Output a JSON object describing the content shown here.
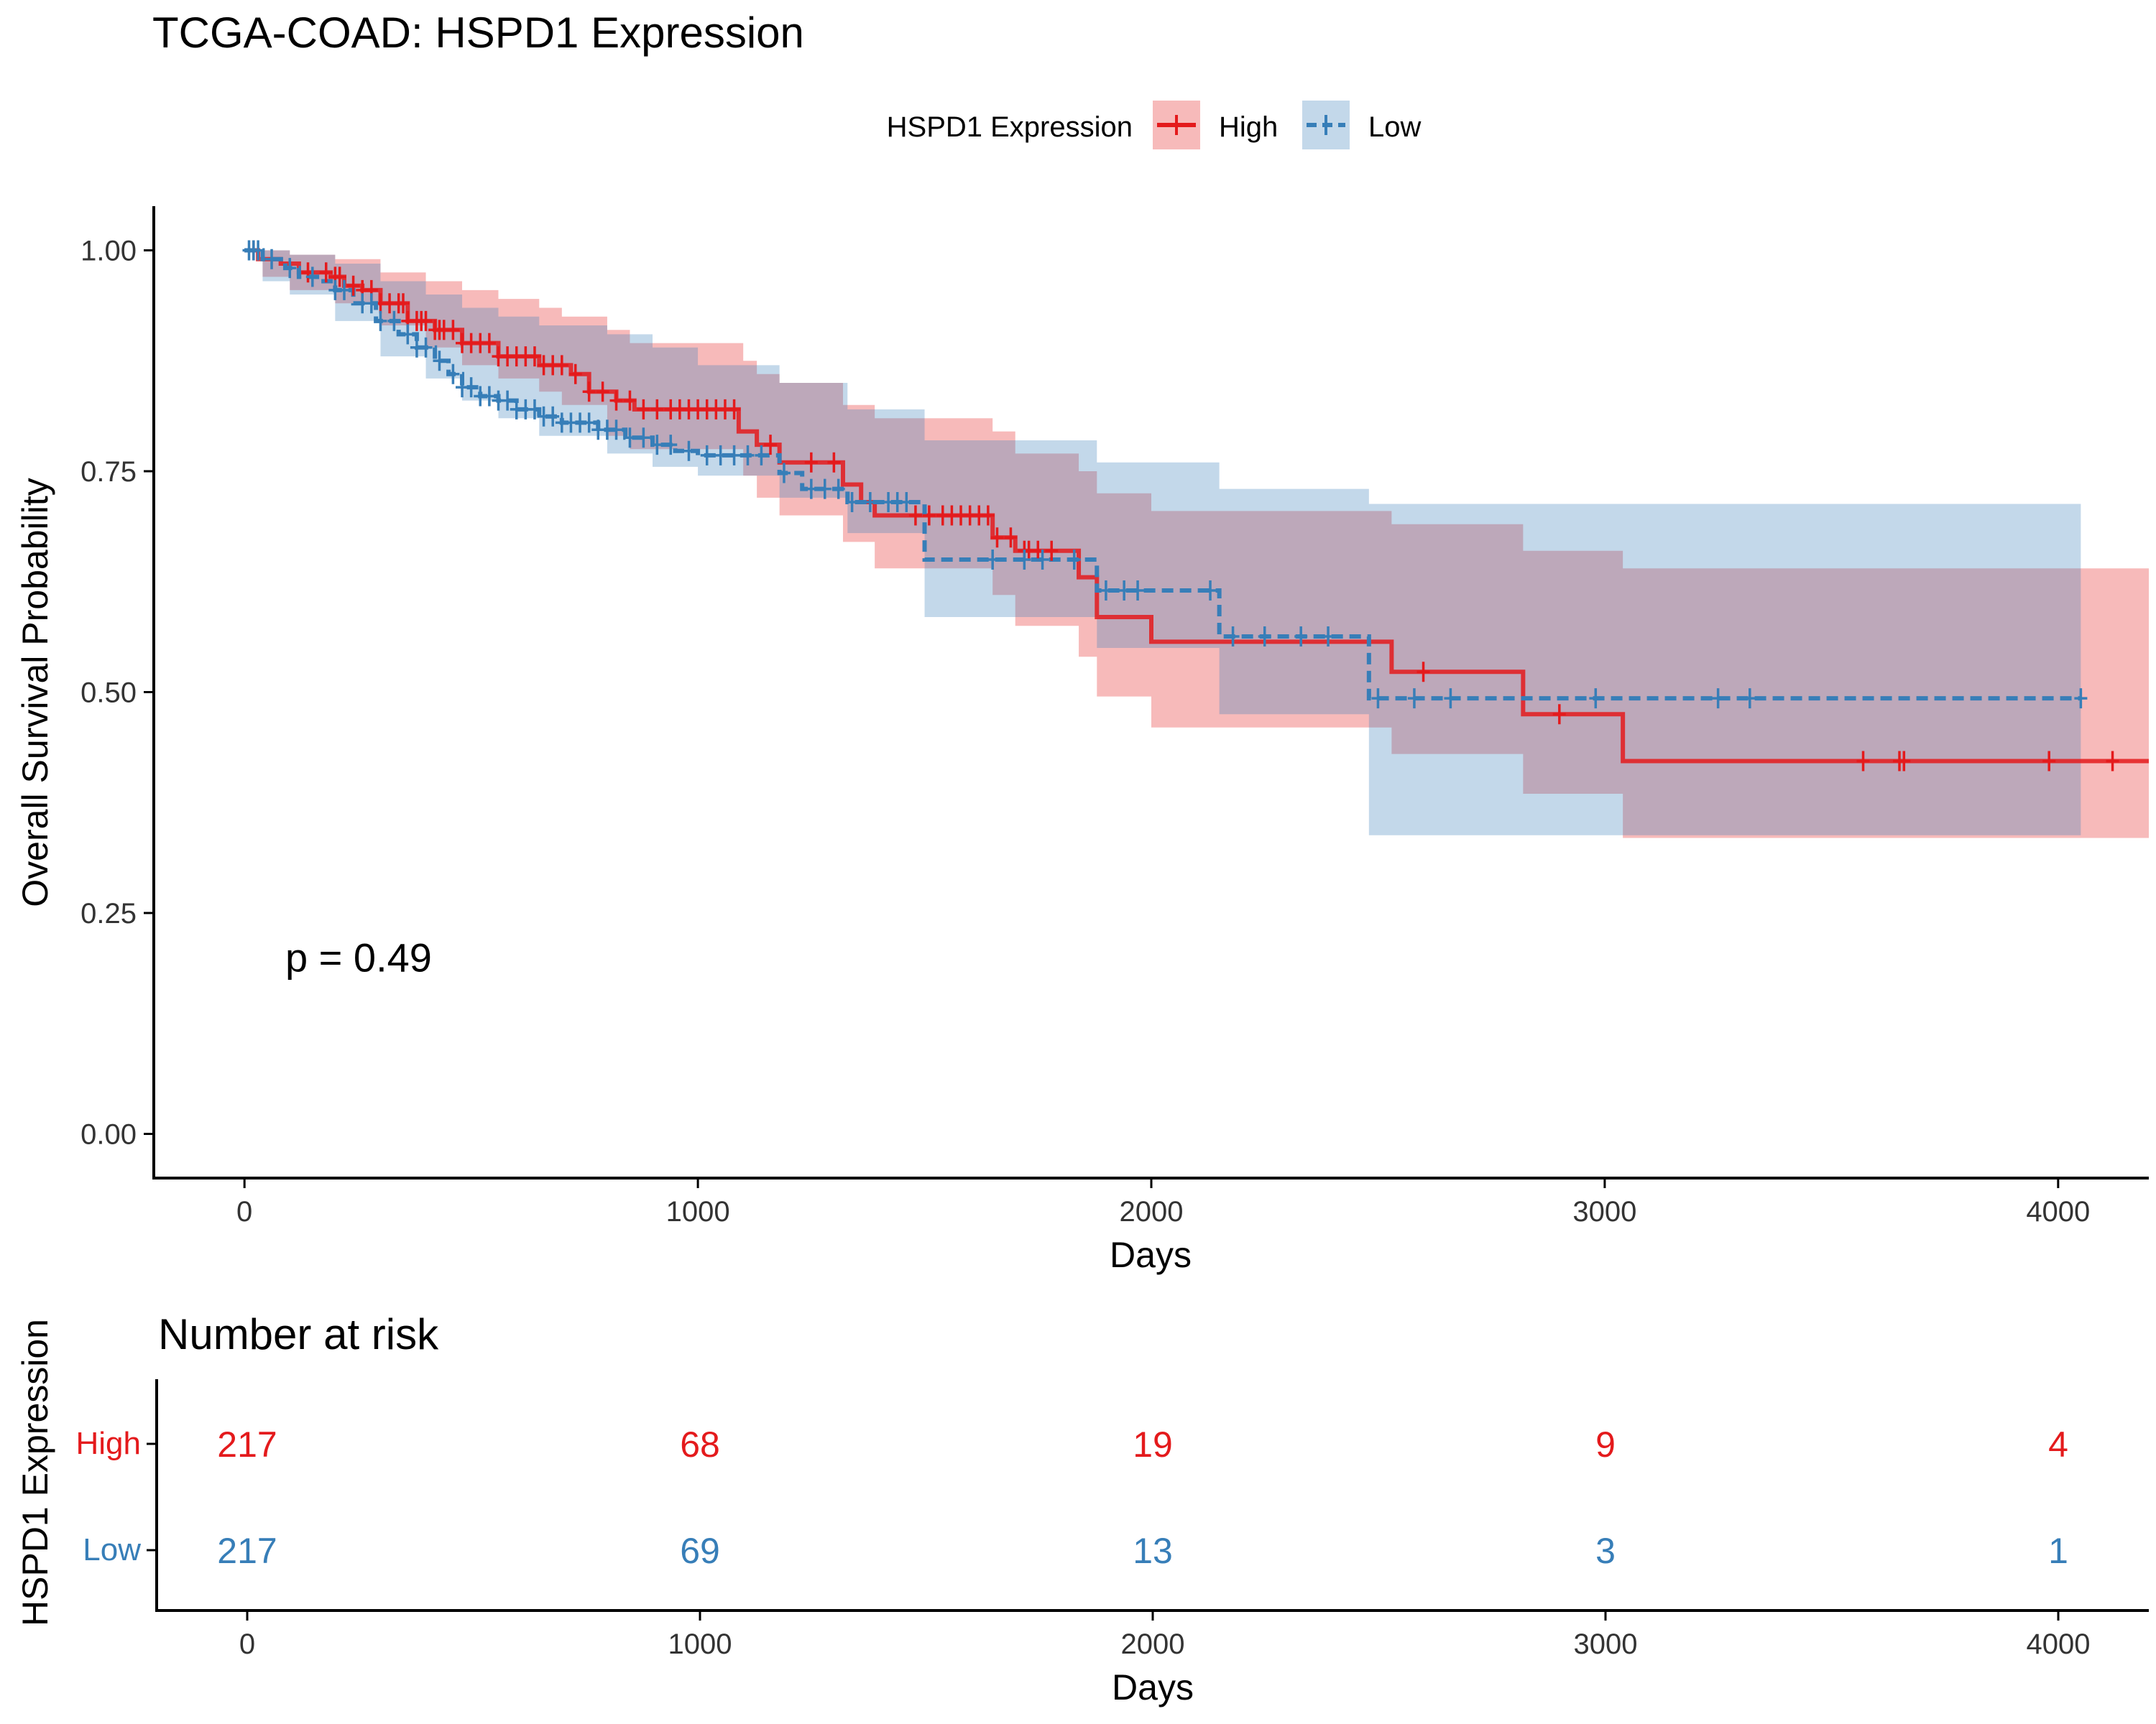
{
  "chart_data": {
    "type": "line",
    "title": "TCGA-COAD: HSPD1 Expression",
    "legend": {
      "title": "HSPD1 Expression",
      "position": "top",
      "entries": [
        "High",
        "Low"
      ]
    },
    "xlabel": "Days",
    "ylabel": "Overall Survival Probability",
    "xlim": [
      -200,
      4200
    ],
    "ylim": [
      -0.05,
      1.05
    ],
    "x_ticks": [
      0,
      1000,
      2000,
      3000,
      4000
    ],
    "x_tick_labels": [
      "0",
      "1000",
      "2000",
      "3000",
      "4000"
    ],
    "y_ticks": [
      0,
      0.25,
      0.5,
      0.75,
      1.0
    ],
    "y_tick_labels": [
      "0.00",
      "0.25",
      "0.50",
      "0.75",
      "1.00"
    ],
    "grid": false,
    "annotation": "p = 0.49",
    "annotation_pos": {
      "x": 90,
      "y": 0.2
    },
    "series": [
      {
        "name": "High",
        "color": "#e41a1c",
        "dash": "solid",
        "steps": [
          [
            0,
            1.0
          ],
          [
            30,
            0.99
          ],
          [
            80,
            0.985
          ],
          [
            120,
            0.975
          ],
          [
            190,
            0.97
          ],
          [
            220,
            0.96
          ],
          [
            260,
            0.955
          ],
          [
            300,
            0.94
          ],
          [
            360,
            0.92
          ],
          [
            420,
            0.91
          ],
          [
            480,
            0.895
          ],
          [
            560,
            0.88
          ],
          [
            650,
            0.87
          ],
          [
            720,
            0.86
          ],
          [
            760,
            0.84
          ],
          [
            820,
            0.83
          ],
          [
            860,
            0.82
          ],
          [
            1090,
            0.795
          ],
          [
            1130,
            0.78
          ],
          [
            1180,
            0.76
          ],
          [
            1320,
            0.735
          ],
          [
            1360,
            0.715
          ],
          [
            1390,
            0.7
          ],
          [
            1650,
            0.675
          ],
          [
            1700,
            0.66
          ],
          [
            1840,
            0.63
          ],
          [
            1880,
            0.585
          ],
          [
            2000,
            0.557
          ],
          [
            2530,
            0.523
          ],
          [
            2820,
            0.475
          ],
          [
            3040,
            0.422
          ],
          [
            4200,
            0.422
          ]
        ],
        "ci_upper": [
          [
            0,
            1.0
          ],
          [
            40,
            1.0
          ],
          [
            100,
            0.995
          ],
          [
            200,
            0.99
          ],
          [
            300,
            0.975
          ],
          [
            400,
            0.965
          ],
          [
            480,
            0.955
          ],
          [
            560,
            0.945
          ],
          [
            650,
            0.935
          ],
          [
            700,
            0.925
          ],
          [
            800,
            0.91
          ],
          [
            850,
            0.895
          ],
          [
            1100,
            0.875
          ],
          [
            1130,
            0.86
          ],
          [
            1180,
            0.85
          ],
          [
            1320,
            0.825
          ],
          [
            1390,
            0.81
          ],
          [
            1650,
            0.795
          ],
          [
            1700,
            0.77
          ],
          [
            1840,
            0.75
          ],
          [
            1880,
            0.725
          ],
          [
            2000,
            0.705
          ],
          [
            2530,
            0.69
          ],
          [
            2820,
            0.66
          ],
          [
            3040,
            0.64
          ],
          [
            4200,
            0.64
          ]
        ],
        "ci_lower": [
          [
            0,
            1.0
          ],
          [
            40,
            0.97
          ],
          [
            100,
            0.955
          ],
          [
            200,
            0.94
          ],
          [
            300,
            0.915
          ],
          [
            400,
            0.89
          ],
          [
            480,
            0.87
          ],
          [
            560,
            0.855
          ],
          [
            650,
            0.84
          ],
          [
            700,
            0.825
          ],
          [
            800,
            0.79
          ],
          [
            850,
            0.775
          ],
          [
            1100,
            0.745
          ],
          [
            1130,
            0.72
          ],
          [
            1180,
            0.7
          ],
          [
            1320,
            0.67
          ],
          [
            1390,
            0.64
          ],
          [
            1650,
            0.61
          ],
          [
            1700,
            0.575
          ],
          [
            1840,
            0.54
          ],
          [
            1880,
            0.495
          ],
          [
            2000,
            0.46
          ],
          [
            2530,
            0.43
          ],
          [
            2820,
            0.385
          ],
          [
            3040,
            0.335
          ],
          [
            4200,
            0.335
          ]
        ],
        "censor_x": [
          20,
          140,
          180,
          200,
          210,
          240,
          260,
          280,
          300,
          320,
          340,
          350,
          360,
          380,
          390,
          400,
          420,
          430,
          440,
          460,
          480,
          500,
          520,
          540,
          560,
          580,
          600,
          620,
          640,
          660,
          680,
          700,
          730,
          760,
          790,
          820,
          850,
          880,
          910,
          940,
          960,
          980,
          1000,
          1020,
          1040,
          1060,
          1080,
          1160,
          1250,
          1300,
          1480,
          1510,
          1540,
          1560,
          1580,
          1600,
          1620,
          1640,
          1660,
          1690,
          1720,
          1730,
          1750,
          1780,
          2600,
          2900,
          3570,
          3650,
          3660,
          3980,
          4120
        ],
        "risk_counts": [
          217,
          68,
          19,
          9,
          4
        ]
      },
      {
        "name": "Low",
        "color": "#377eb8",
        "dash": "dashed",
        "steps": [
          [
            0,
            1.0
          ],
          [
            40,
            0.99
          ],
          [
            90,
            0.98
          ],
          [
            120,
            0.97
          ],
          [
            160,
            0.965
          ],
          [
            200,
            0.955
          ],
          [
            240,
            0.94
          ],
          [
            290,
            0.92
          ],
          [
            340,
            0.905
          ],
          [
            380,
            0.89
          ],
          [
            420,
            0.875
          ],
          [
            450,
            0.86
          ],
          [
            480,
            0.845
          ],
          [
            520,
            0.835
          ],
          [
            560,
            0.83
          ],
          [
            600,
            0.82
          ],
          [
            650,
            0.812
          ],
          [
            700,
            0.805
          ],
          [
            780,
            0.797
          ],
          [
            840,
            0.788
          ],
          [
            900,
            0.78
          ],
          [
            950,
            0.773
          ],
          [
            1000,
            0.768
          ],
          [
            1180,
            0.748
          ],
          [
            1230,
            0.73
          ],
          [
            1330,
            0.715
          ],
          [
            1500,
            0.65
          ],
          [
            1880,
            0.615
          ],
          [
            2150,
            0.563
          ],
          [
            2480,
            0.493
          ],
          [
            4050,
            0.493
          ]
        ],
        "ci_upper": [
          [
            0,
            1.0
          ],
          [
            40,
            1.0
          ],
          [
            100,
            0.995
          ],
          [
            200,
            0.985
          ],
          [
            300,
            0.965
          ],
          [
            400,
            0.95
          ],
          [
            480,
            0.935
          ],
          [
            560,
            0.925
          ],
          [
            650,
            0.915
          ],
          [
            800,
            0.905
          ],
          [
            900,
            0.89
          ],
          [
            1000,
            0.87
          ],
          [
            1180,
            0.85
          ],
          [
            1330,
            0.82
          ],
          [
            1500,
            0.785
          ],
          [
            1880,
            0.76
          ],
          [
            2150,
            0.73
          ],
          [
            2480,
            0.713
          ],
          [
            4050,
            0.713
          ]
        ],
        "ci_lower": [
          [
            0,
            1.0
          ],
          [
            40,
            0.965
          ],
          [
            100,
            0.95
          ],
          [
            200,
            0.92
          ],
          [
            300,
            0.88
          ],
          [
            400,
            0.855
          ],
          [
            480,
            0.83
          ],
          [
            560,
            0.81
          ],
          [
            650,
            0.79
          ],
          [
            800,
            0.77
          ],
          [
            900,
            0.755
          ],
          [
            1000,
            0.745
          ],
          [
            1180,
            0.72
          ],
          [
            1330,
            0.68
          ],
          [
            1500,
            0.585
          ],
          [
            1880,
            0.55
          ],
          [
            2150,
            0.475
          ],
          [
            2480,
            0.338
          ],
          [
            4050,
            0.338
          ]
        ],
        "censor_x": [
          10,
          20,
          30,
          60,
          100,
          150,
          200,
          220,
          260,
          280,
          300,
          330,
          360,
          380,
          400,
          430,
          460,
          480,
          500,
          520,
          540,
          560,
          580,
          600,
          620,
          640,
          660,
          680,
          700,
          720,
          740,
          760,
          780,
          800,
          820,
          850,
          880,
          910,
          940,
          980,
          1020,
          1050,
          1080,
          1110,
          1140,
          1190,
          1250,
          1280,
          1310,
          1340,
          1380,
          1420,
          1440,
          1460,
          1650,
          1720,
          1760,
          1830,
          1900,
          1940,
          1970,
          2130,
          2180,
          2250,
          2330,
          2390,
          2500,
          2580,
          2660,
          2980,
          3250,
          3320,
          4050
        ],
        "risk_counts": [
          217,
          69,
          13,
          3,
          1
        ]
      }
    ],
    "risk_table": {
      "title": "Number at risk",
      "ylabel": "HSPD1 Expression",
      "xlabel": "Days",
      "times": [
        0,
        1000,
        2000,
        3000,
        4000
      ]
    }
  }
}
